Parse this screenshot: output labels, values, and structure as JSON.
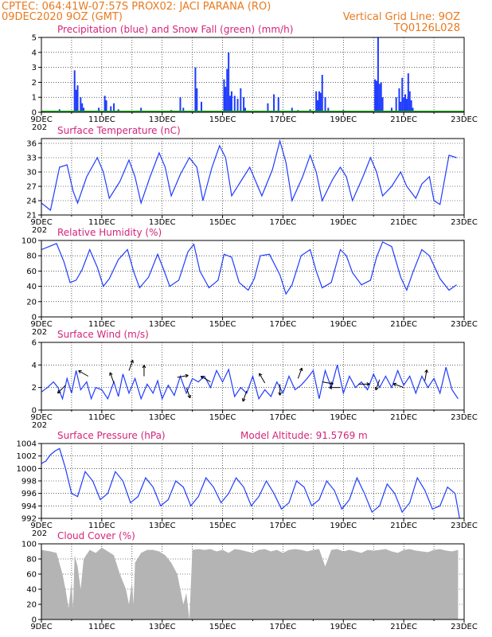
{
  "colors": {
    "header": "#e87a1e",
    "title": "#d4247a",
    "precip": "#1f3cff",
    "snow": "#1aa11a",
    "line": "#1f3cff",
    "cloud": "#b4b4b4"
  },
  "header": {
    "line1_left": "CPTEC:   064:41W-07:57S   PROX02: JACI PARANA (RO)",
    "line2_left": "09DEC2020 9OZ (GMT)",
    "line2_right": "Vertical Grid Line: 9OZ",
    "line3_right": "TQ0126L028"
  },
  "x_labels": [
    "9DEC",
    "11DEC",
    "13DEC",
    "15DEC",
    "17DEC",
    "19DEC",
    "21DEC",
    "23DEC"
  ],
  "x_sublabel": "202",
  "chart_data": [
    {
      "type": "bar",
      "title": "Precipitation (blue) and Snow Fall (green) (mm/h)",
      "ylim": [
        0,
        5
      ],
      "yticks": [
        0,
        1,
        2,
        3,
        4,
        5
      ],
      "series": [
        {
          "name": "Precipitation",
          "points": [
            [
              0.6,
              0.2
            ],
            [
              0.9,
              0.1
            ],
            [
              1.1,
              2.8
            ],
            [
              1.15,
              1.5
            ],
            [
              1.2,
              1.8
            ],
            [
              1.3,
              1.0
            ],
            [
              1.35,
              0.6
            ],
            [
              1.4,
              0.3
            ],
            [
              1.9,
              0.3
            ],
            [
              2.1,
              1.1
            ],
            [
              2.15,
              0.8
            ],
            [
              2.3,
              0.4
            ],
            [
              2.4,
              0.6
            ],
            [
              2.55,
              0.2
            ],
            [
              3.3,
              0.3
            ],
            [
              4.0,
              0.1
            ],
            [
              4.3,
              0.15
            ],
            [
              4.6,
              1.0
            ],
            [
              4.7,
              0.3
            ],
            [
              5.1,
              3.0
            ],
            [
              5.15,
              1.6
            ],
            [
              5.3,
              0.7
            ],
            [
              5.5,
              0.1
            ],
            [
              6.05,
              2.2
            ],
            [
              6.1,
              1.7
            ],
            [
              6.15,
              2.9
            ],
            [
              6.2,
              4.0
            ],
            [
              6.25,
              1.1
            ],
            [
              6.3,
              1.4
            ],
            [
              6.4,
              1.1
            ],
            [
              6.5,
              0.9
            ],
            [
              6.6,
              1.6
            ],
            [
              6.7,
              1.0
            ],
            [
              6.75,
              0.3
            ],
            [
              7.5,
              0.6
            ],
            [
              7.7,
              1.2
            ],
            [
              7.85,
              1.0
            ],
            [
              8.3,
              0.3
            ],
            [
              8.5,
              0.15
            ],
            [
              8.9,
              0.2
            ],
            [
              9.1,
              1.4
            ],
            [
              9.15,
              0.8
            ],
            [
              9.2,
              1.4
            ],
            [
              9.25,
              1.3
            ],
            [
              9.3,
              2.5
            ],
            [
              9.4,
              1.0
            ],
            [
              9.5,
              0.3
            ],
            [
              10.0,
              0.15
            ],
            [
              10.5,
              0.1
            ],
            [
              11.05,
              2.2
            ],
            [
              11.1,
              2.1
            ],
            [
              11.15,
              5.0
            ],
            [
              11.2,
              1.9
            ],
            [
              11.25,
              2.0
            ],
            [
              11.3,
              1.0
            ],
            [
              11.6,
              0.3
            ],
            [
              11.75,
              1.0
            ],
            [
              11.85,
              1.6
            ],
            [
              11.9,
              0.7
            ],
            [
              11.95,
              2.3
            ],
            [
              12.0,
              1.0
            ],
            [
              12.05,
              1.2
            ],
            [
              12.1,
              0.9
            ],
            [
              12.15,
              2.6
            ],
            [
              12.2,
              1.4
            ],
            [
              12.25,
              0.8
            ],
            [
              12.3,
              0.3
            ]
          ]
        },
        {
          "name": "Snow Fall",
          "points": []
        }
      ]
    },
    {
      "type": "line",
      "title": "Surface Temperature (nC)",
      "ylim": [
        21,
        37
      ],
      "yticks": [
        21,
        24,
        27,
        30,
        33,
        36
      ],
      "x": [
        0,
        0.3,
        0.6,
        0.85,
        1.05,
        1.2,
        1.5,
        1.85,
        2.05,
        2.25,
        2.6,
        2.9,
        3.1,
        3.3,
        3.6,
        3.9,
        4.1,
        4.3,
        4.6,
        4.9,
        5.15,
        5.35,
        5.65,
        5.9,
        6.1,
        6.3,
        6.65,
        6.9,
        7.1,
        7.3,
        7.65,
        7.9,
        8.1,
        8.3,
        8.65,
        8.9,
        9.1,
        9.3,
        9.65,
        9.9,
        10.1,
        10.3,
        10.65,
        10.9,
        11.1,
        11.3,
        11.6,
        11.9,
        12.1,
        12.4,
        12.6,
        12.85,
        13.0
      ],
      "y": [
        23.5,
        22,
        31,
        31.5,
        26,
        23.5,
        29,
        33,
        30,
        24.5,
        28,
        32.5,
        29,
        23.5,
        29,
        34,
        31,
        25,
        29.5,
        33,
        31,
        24,
        31,
        35.5,
        33,
        25,
        28.5,
        31,
        28,
        25,
        30.5,
        36.5,
        32,
        24,
        29,
        33.5,
        30,
        24,
        28.5,
        31,
        29,
        24,
        29,
        33,
        30,
        25,
        27,
        30,
        27,
        24.5,
        27.5,
        29,
        24
      ],
      "x_end": [
        13.2,
        13.5,
        13.75
      ],
      "y_end": [
        23.2,
        33.5,
        33
      ]
    },
    {
      "type": "line",
      "title": "Relative Humidity (%)",
      "ylim": [
        0,
        100
      ],
      "yticks": [
        0,
        20,
        40,
        60,
        80,
        100
      ],
      "x": [
        0,
        0.25,
        0.5,
        0.75,
        0.95,
        1.15,
        1.35,
        1.6,
        1.85,
        2.05,
        2.25,
        2.55,
        2.85,
        3.05,
        3.25,
        3.55,
        3.85,
        4.05,
        4.25,
        4.55,
        4.85,
        5.05,
        5.25,
        5.55,
        5.85,
        6.05,
        6.3,
        6.55,
        6.85,
        7.05,
        7.25,
        7.55,
        7.9,
        8.1,
        8.3,
        8.6,
        8.9,
        9.1,
        9.3,
        9.6,
        9.9,
        10.1,
        10.3,
        10.6,
        10.9,
        11.1,
        11.3,
        11.6,
        11.9,
        12.1,
        12.3,
        12.6,
        12.85,
        13.2,
        13.5,
        13.75
      ],
      "y": [
        88,
        92,
        96,
        72,
        45,
        48,
        62,
        88,
        65,
        40,
        50,
        75,
        88,
        60,
        38,
        52,
        82,
        62,
        40,
        48,
        85,
        95,
        60,
        38,
        48,
        82,
        78,
        45,
        35,
        50,
        80,
        82,
        55,
        30,
        42,
        80,
        88,
        60,
        38,
        45,
        88,
        80,
        58,
        42,
        48,
        78,
        98,
        92,
        52,
        35,
        58,
        88,
        80,
        50,
        35,
        42
      ]
    },
    {
      "type": "line",
      "title": "Surface Wind (m/s)",
      "ylim": [
        0,
        6
      ],
      "yticks": [
        0,
        2,
        4,
        6
      ],
      "x": [
        0,
        0.2,
        0.4,
        0.55,
        0.7,
        0.85,
        1.0,
        1.15,
        1.3,
        1.5,
        1.65,
        1.8,
        2.0,
        2.2,
        2.4,
        2.55,
        2.7,
        2.9,
        3.1,
        3.3,
        3.5,
        3.7,
        3.85,
        4.0,
        4.2,
        4.4,
        4.6,
        4.8,
        5.0,
        5.2,
        5.4,
        5.6,
        5.8,
        6.0,
        6.2,
        6.4,
        6.6,
        6.8,
        7.0,
        7.2,
        7.4,
        7.6,
        7.8,
        8.0,
        8.2,
        8.4,
        8.6,
        8.8,
        9.0,
        9.2,
        9.4,
        9.6,
        9.8,
        10.0,
        10.2,
        10.4,
        10.6,
        10.8,
        11.0,
        11.2,
        11.4,
        11.6,
        11.8,
        12.0,
        12.2,
        12.4,
        12.6,
        12.8,
        13.0,
        13.2,
        13.4,
        13.6,
        13.8
      ],
      "y": [
        1.6,
        2.0,
        2.5,
        2.0,
        1.0,
        2.8,
        1.5,
        3.5,
        1.8,
        2.5,
        1.0,
        2.0,
        1.8,
        1.0,
        2.5,
        1.2,
        3.2,
        1.5,
        2.8,
        1.0,
        2.3,
        1.5,
        2.6,
        1.0,
        2.2,
        1.3,
        3.0,
        1.5,
        2.8,
        2.5,
        3.0,
        2.0,
        3.5,
        2.5,
        3.6,
        1.2,
        2.0,
        1.5,
        3.0,
        1.0,
        1.8,
        1.2,
        2.5,
        1.5,
        3.0,
        1.8,
        2.2,
        2.8,
        3.5,
        1.0,
        3.5,
        2.0,
        4.0,
        1.5,
        3.0,
        2.0,
        2.5,
        1.8,
        3.2,
        2.0,
        3.0,
        2.0,
        3.5,
        2.2,
        3.0,
        1.5,
        3.0,
        2.0,
        2.8,
        1.5,
        3.8,
        1.8,
        1.0
      ],
      "arrows": [
        [
          0.8,
          2.2,
          225
        ],
        [
          1.55,
          3.0,
          300
        ],
        [
          2.4,
          2.4,
          340
        ],
        [
          2.9,
          3.5,
          20
        ],
        [
          3.4,
          3.0,
          0
        ],
        [
          4.5,
          2.9,
          80
        ],
        [
          4.8,
          2.0,
          160
        ],
        [
          5.6,
          2.5,
          300
        ],
        [
          6.8,
          1.7,
          200
        ],
        [
          7.4,
          2.4,
          330
        ],
        [
          7.9,
          2.3,
          180
        ],
        [
          8.5,
          2.8,
          20
        ],
        [
          9.3,
          2.5,
          100
        ],
        [
          9.9,
          2.0,
          270
        ],
        [
          10.5,
          2.3,
          90
        ],
        [
          11.2,
          2.7,
          200
        ],
        [
          12.0,
          2.0,
          290
        ],
        [
          12.7,
          2.6,
          10
        ]
      ]
    },
    {
      "type": "line",
      "title": "Surface Pressure (hPa)",
      "annotation": "Model Altitude: 91.5769 m",
      "ylim": [
        992,
        1004
      ],
      "yticks": [
        992,
        994,
        996,
        998,
        1000,
        1002,
        1004
      ],
      "x": [
        0,
        0.15,
        0.3,
        0.45,
        0.6,
        0.8,
        1.0,
        1.2,
        1.45,
        1.7,
        1.95,
        2.2,
        2.45,
        2.7,
        2.95,
        3.2,
        3.45,
        3.7,
        3.95,
        4.2,
        4.45,
        4.7,
        4.95,
        5.2,
        5.45,
        5.7,
        5.95,
        6.2,
        6.45,
        6.7,
        6.95,
        7.2,
        7.45,
        7.7,
        7.95,
        8.2,
        8.45,
        8.7,
        8.95,
        9.2,
        9.45,
        9.7,
        9.95,
        10.2,
        10.45,
        10.7,
        10.95,
        11.2,
        11.45,
        11.7,
        11.95,
        12.2,
        12.45,
        12.7,
        12.95,
        13.2,
        13.45,
        13.7,
        13.85
      ],
      "y": [
        1000.8,
        1001.2,
        1002.2,
        1002.8,
        1003.2,
        1000,
        996,
        995.5,
        999.5,
        998,
        995,
        996,
        999.5,
        998,
        994.5,
        995.5,
        998.5,
        997,
        994,
        995,
        998,
        997,
        994,
        995.5,
        998.5,
        997,
        994.5,
        996,
        998.5,
        997,
        994,
        995.5,
        998,
        996,
        993.5,
        994.5,
        998,
        997,
        994,
        995,
        998,
        996.5,
        993.5,
        995,
        998.5,
        996,
        993,
        994,
        997.5,
        996,
        993,
        994.5,
        998.5,
        996.5,
        993.5,
        994,
        997,
        996,
        992
      ]
    },
    {
      "type": "area",
      "title": "Cloud Cover (%)",
      "ylim": [
        0,
        100
      ],
      "yticks": [
        0,
        20,
        40,
        60,
        80,
        100
      ],
      "x": [
        0,
        0.3,
        0.5,
        0.7,
        0.8,
        0.9,
        1.0,
        1.05,
        1.1,
        1.2,
        1.3,
        1.4,
        1.6,
        1.8,
        2.0,
        2.2,
        2.4,
        2.6,
        2.8,
        2.9,
        3.0,
        3.05,
        3.1,
        3.3,
        3.5,
        3.7,
        3.9,
        4.1,
        4.3,
        4.5,
        4.6,
        4.7,
        4.8,
        4.9,
        5.0,
        5.2,
        5.4,
        5.6,
        5.8,
        6.0,
        6.2,
        6.4,
        6.6,
        6.8,
        7.0,
        7.2,
        7.4,
        7.6,
        7.8,
        8.0,
        8.2,
        8.4,
        8.6,
        8.8,
        9.0,
        9.2,
        9.4,
        9.6,
        9.8,
        10.0,
        10.2,
        10.4,
        10.6,
        10.8,
        11.0,
        11.2,
        11.4,
        11.6,
        11.8,
        12.0,
        12.2,
        12.4,
        12.6,
        12.8,
        13.0,
        13.2,
        13.4,
        13.6,
        13.8
      ],
      "y": [
        92,
        90,
        88,
        60,
        40,
        15,
        50,
        15,
        85,
        70,
        40,
        80,
        92,
        88,
        95,
        90,
        85,
        60,
        40,
        20,
        50,
        20,
        75,
        88,
        92,
        92,
        90,
        85,
        75,
        60,
        40,
        20,
        35,
        0,
        92,
        93,
        92,
        93,
        90,
        92,
        88,
        93,
        92,
        90,
        88,
        92,
        93,
        90,
        92,
        88,
        92,
        93,
        92,
        90,
        92,
        93,
        70,
        92,
        93,
        90,
        92,
        90,
        88,
        92,
        91,
        92,
        93,
        90,
        88,
        92,
        93,
        91,
        90,
        89,
        92,
        93,
        91,
        90,
        92
      ]
    }
  ]
}
